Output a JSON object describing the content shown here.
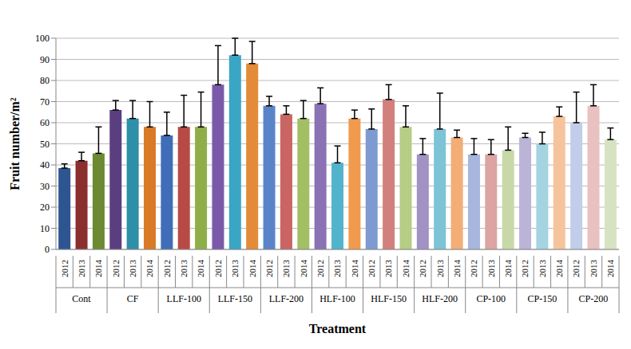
{
  "chart_data": {
    "type": "bar",
    "x_label": "Treatment",
    "y_label": "Fruit number/m²",
    "categories": [
      "2012",
      "2013",
      "2014",
      "2012",
      "2013",
      "2014",
      "2012",
      "2013",
      "2014",
      "2012",
      "2013",
      "2014",
      "2012",
      "2013",
      "2014",
      "2012",
      "2013",
      "2014",
      "2012",
      "2013",
      "2014",
      "2012",
      "2013",
      "2014",
      "2012",
      "2013",
      "2014",
      "2012",
      "2013",
      "2014",
      "2012",
      "2013",
      "2014"
    ],
    "groups": [
      "Cont",
      "CF",
      "LLF-100",
      "LLF-150",
      "LLF-200",
      "HLF-100",
      "HLF-150",
      "HLF-200",
      "CP-100",
      "CP-150",
      "CP-200"
    ],
    "values": [
      38.5,
      42,
      45.5,
      66,
      62,
      58,
      54,
      58,
      58,
      78,
      92,
      88,
      68,
      64,
      62,
      69,
      41,
      62,
      57,
      71,
      58,
      45,
      57,
      53,
      45,
      45,
      47,
      53,
      50,
      63,
      60,
      68,
      52
    ],
    "errors": [
      2,
      4,
      12.5,
      4.5,
      8.5,
      12,
      11,
      15,
      16.5,
      18.5,
      8,
      10.5,
      4.5,
      4,
      8.5,
      7.5,
      8,
      4,
      9.5,
      7,
      10,
      7.5,
      17,
      3.5,
      7.5,
      7,
      11,
      2,
      5.5,
      4.5,
      14.5,
      10,
      5.5
    ],
    "colors": [
      "#2e5591",
      "#8b2e2e",
      "#6b8a32",
      "#5b3e80",
      "#2e8fa8",
      "#d97a26",
      "#3f6db8",
      "#b84a46",
      "#8fae4a",
      "#7a5aa8",
      "#3aa6c4",
      "#e38b38",
      "#5b84c8",
      "#c96562",
      "#a3bf66",
      "#8a72b4",
      "#52b4cc",
      "#f09a4e",
      "#7d9bd1",
      "#d1807d",
      "#b5cd85",
      "#a292c4",
      "#7cc4d6",
      "#f3ad76",
      "#a6b6dd",
      "#dca4a2",
      "#c8d9a8",
      "#bcb4d6",
      "#a4d4e2",
      "#f6c49c",
      "#c2cee9",
      "#e8c1c0",
      "#d6e3c2"
    ],
    "ylim": [
      0,
      100
    ],
    "yticks": [
      0,
      10,
      20,
      30,
      40,
      50,
      60,
      70,
      80,
      90,
      100
    ],
    "grid": true
  }
}
